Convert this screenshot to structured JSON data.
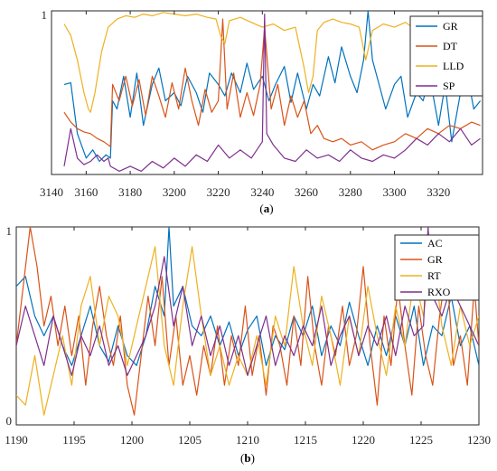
{
  "chart_data": [
    {
      "type": "line",
      "panel_label": "(a)",
      "xlim": [
        3150,
        3340
      ],
      "ylim": [
        0,
        1
      ],
      "xticks": [
        3140,
        3160,
        3180,
        3200,
        3220,
        3240,
        3260,
        3280,
        3300,
        3320
      ],
      "ytick_labels": [
        {
          "value": 1,
          "label": "1"
        }
      ],
      "grid": false,
      "legend_position": "top-right",
      "series": [
        {
          "name": "GR",
          "color": "#0072BD",
          "x": [
            3150,
            3153,
            3156,
            3160,
            3163,
            3166,
            3169,
            3171,
            3172,
            3174,
            3177,
            3180,
            3183,
            3186,
            3190,
            3193,
            3196,
            3200,
            3203,
            3206,
            3210,
            3213,
            3216,
            3220,
            3223,
            3226,
            3230,
            3233,
            3236,
            3240,
            3243,
            3246,
            3250,
            3253,
            3256,
            3260,
            3263,
            3266,
            3270,
            3273,
            3276,
            3280,
            3283,
            3286,
            3288,
            3290,
            3293,
            3296,
            3300,
            3303,
            3306,
            3310,
            3313,
            3316,
            3320,
            3323,
            3326,
            3330,
            3333,
            3336,
            3339
          ],
          "y": [
            0.55,
            0.56,
            0.25,
            0.1,
            0.15,
            0.08,
            0.12,
            0.1,
            0.45,
            0.4,
            0.6,
            0.35,
            0.62,
            0.3,
            0.55,
            0.65,
            0.45,
            0.5,
            0.42,
            0.6,
            0.5,
            0.38,
            0.62,
            0.55,
            0.48,
            0.62,
            0.5,
            0.68,
            0.52,
            0.6,
            0.45,
            0.55,
            0.66,
            0.44,
            0.62,
            0.4,
            0.55,
            0.48,
            0.72,
            0.56,
            0.78,
            0.6,
            0.5,
            0.7,
            1.0,
            0.7,
            0.55,
            0.4,
            0.55,
            0.6,
            0.35,
            0.5,
            0.45,
            0.6,
            0.3,
            0.55,
            0.2,
            0.5,
            0.62,
            0.4,
            0.45
          ]
        },
        {
          "name": "DT",
          "color": "#D95319",
          "x": [
            3150,
            3153,
            3156,
            3159,
            3162,
            3165,
            3168,
            3171,
            3172,
            3175,
            3178,
            3181,
            3184,
            3187,
            3190,
            3193,
            3196,
            3199,
            3202,
            3205,
            3208,
            3211,
            3214,
            3217,
            3220,
            3222,
            3224,
            3227,
            3230,
            3233,
            3236,
            3239,
            3241,
            3244,
            3247,
            3250,
            3253,
            3256,
            3259,
            3262,
            3265,
            3268,
            3272,
            3276,
            3280,
            3285,
            3290,
            3295,
            3300,
            3305,
            3310,
            3315,
            3320,
            3325,
            3330,
            3335,
            3339
          ],
          "y": [
            0.38,
            0.32,
            0.28,
            0.26,
            0.25,
            0.22,
            0.2,
            0.17,
            0.55,
            0.45,
            0.6,
            0.42,
            0.58,
            0.36,
            0.6,
            0.48,
            0.35,
            0.56,
            0.4,
            0.65,
            0.45,
            0.3,
            0.52,
            0.38,
            0.45,
            0.95,
            0.4,
            0.62,
            0.35,
            0.5,
            0.36,
            0.55,
            0.9,
            0.4,
            0.55,
            0.3,
            0.48,
            0.35,
            0.45,
            0.25,
            0.3,
            0.22,
            0.2,
            0.22,
            0.18,
            0.2,
            0.15,
            0.18,
            0.2,
            0.25,
            0.22,
            0.28,
            0.25,
            0.3,
            0.28,
            0.32,
            0.3
          ]
        },
        {
          "name": "LLD",
          "color": "#EDB120",
          "x": [
            3150,
            3153,
            3156,
            3159,
            3161,
            3162,
            3164,
            3167,
            3170,
            3174,
            3178,
            3182,
            3186,
            3190,
            3195,
            3200,
            3205,
            3210,
            3215,
            3219,
            3221,
            3223,
            3225,
            3230,
            3235,
            3240,
            3245,
            3250,
            3255,
            3259,
            3261,
            3263,
            3265,
            3268,
            3272,
            3276,
            3280,
            3284,
            3287,
            3290,
            3295,
            3300,
            3305,
            3310,
            3315,
            3320,
            3325,
            3330,
            3335,
            3339
          ],
          "y": [
            0.92,
            0.85,
            0.7,
            0.5,
            0.4,
            0.38,
            0.5,
            0.75,
            0.9,
            0.95,
            0.97,
            0.96,
            0.98,
            0.97,
            0.99,
            0.98,
            0.97,
            0.98,
            0.96,
            0.95,
            0.85,
            0.8,
            0.94,
            0.96,
            0.93,
            0.9,
            0.92,
            0.88,
            0.9,
            0.65,
            0.5,
            0.6,
            0.88,
            0.93,
            0.95,
            0.93,
            0.92,
            0.9,
            0.7,
            0.88,
            0.92,
            0.9,
            0.93,
            0.88,
            0.91,
            0.9,
            0.92,
            0.88,
            0.9,
            0.92
          ]
        },
        {
          "name": "SP",
          "color": "#7E2F8E",
          "x": [
            3150,
            3153,
            3156,
            3159,
            3162,
            3165,
            3168,
            3170,
            3171,
            3175,
            3180,
            3185,
            3190,
            3195,
            3200,
            3205,
            3210,
            3215,
            3220,
            3225,
            3230,
            3235,
            3240,
            3241,
            3242,
            3245,
            3250,
            3255,
            3260,
            3265,
            3270,
            3275,
            3280,
            3285,
            3290,
            3295,
            3300,
            3305,
            3310,
            3315,
            3320,
            3325,
            3330,
            3335,
            3339
          ],
          "y": [
            0.05,
            0.28,
            0.1,
            0.06,
            0.08,
            0.12,
            0.08,
            0.1,
            0.05,
            0.02,
            0.05,
            0.02,
            0.08,
            0.04,
            0.1,
            0.05,
            0.12,
            0.08,
            0.18,
            0.1,
            0.15,
            0.1,
            0.2,
            0.98,
            0.25,
            0.18,
            0.1,
            0.08,
            0.15,
            0.1,
            0.12,
            0.08,
            0.15,
            0.1,
            0.08,
            0.12,
            0.1,
            0.15,
            0.22,
            0.18,
            0.25,
            0.2,
            0.28,
            0.18,
            0.22
          ]
        }
      ]
    },
    {
      "type": "line",
      "panel_label": "(b)",
      "xlim": [
        1190,
        1230
      ],
      "ylim": [
        0,
        1
      ],
      "xticks": [
        1190,
        1195,
        1200,
        1205,
        1210,
        1215,
        1220,
        1225,
        1230
      ],
      "ytick_labels": [
        {
          "value": 0,
          "label": "0"
        },
        {
          "value": 1,
          "label": "1"
        }
      ],
      "grid": false,
      "legend_position": "top-right",
      "series": [
        {
          "name": "AC",
          "color": "#0072BD",
          "x": [
            1190,
            1190.8,
            1191.6,
            1192.4,
            1193.2,
            1194,
            1194.8,
            1195.6,
            1196.4,
            1197.2,
            1198,
            1198.8,
            1199.6,
            1200.4,
            1201.2,
            1202,
            1202.8,
            1203.2,
            1203.6,
            1204.4,
            1205.2,
            1206,
            1206.8,
            1207.6,
            1208.4,
            1209.2,
            1210,
            1210.8,
            1211.6,
            1212.4,
            1213.2,
            1214,
            1214.8,
            1215.6,
            1216.4,
            1217.2,
            1218,
            1218.8,
            1219.6,
            1220.4,
            1221.2,
            1222,
            1222.8,
            1223.6,
            1224.4,
            1225.2,
            1226,
            1226.8,
            1227.6,
            1228.4,
            1229.2,
            1230
          ],
          "y": [
            0.7,
            0.75,
            0.55,
            0.45,
            0.55,
            0.4,
            0.3,
            0.45,
            0.6,
            0.4,
            0.32,
            0.5,
            0.35,
            0.3,
            0.45,
            0.7,
            0.55,
            1.0,
            0.6,
            0.7,
            0.5,
            0.45,
            0.55,
            0.4,
            0.52,
            0.35,
            0.48,
            0.55,
            0.3,
            0.45,
            0.38,
            0.55,
            0.45,
            0.6,
            0.35,
            0.5,
            0.4,
            0.62,
            0.45,
            0.3,
            0.5,
            0.35,
            0.55,
            0.4,
            0.6,
            0.3,
            0.5,
            0.45,
            0.65,
            0.4,
            0.5,
            0.3
          ]
        },
        {
          "name": "GR",
          "color": "#D95319",
          "x": [
            1190,
            1190.6,
            1191.2,
            1191.8,
            1192.4,
            1193,
            1193.6,
            1194.2,
            1194.8,
            1195.4,
            1196,
            1196.6,
            1197.2,
            1197.8,
            1198.4,
            1199,
            1199.6,
            1200.2,
            1200.8,
            1201.4,
            1202,
            1202.6,
            1203.2,
            1203.8,
            1204.4,
            1205,
            1205.6,
            1206.2,
            1206.8,
            1207.4,
            1208,
            1208.6,
            1209.2,
            1209.8,
            1210.4,
            1211,
            1211.6,
            1212.2,
            1212.8,
            1213.4,
            1214,
            1214.6,
            1215.2,
            1215.8,
            1216.4,
            1217,
            1217.6,
            1218.2,
            1218.8,
            1219.4,
            1220,
            1220.6,
            1221.2,
            1221.8,
            1222.4,
            1223,
            1223.6,
            1224.2,
            1224.8,
            1225.4,
            1226,
            1226.6,
            1227.2,
            1227.8,
            1228.4,
            1229,
            1229.6,
            1230
          ],
          "y": [
            0.4,
            0.7,
            1.0,
            0.8,
            0.5,
            0.65,
            0.4,
            0.6,
            0.35,
            0.55,
            0.2,
            0.5,
            0.7,
            0.45,
            0.3,
            0.55,
            0.2,
            0.05,
            0.35,
            0.65,
            0.4,
            0.75,
            0.3,
            0.55,
            0.2,
            0.35,
            0.15,
            0.4,
            0.25,
            0.5,
            0.2,
            0.45,
            0.3,
            0.6,
            0.25,
            0.45,
            0.15,
            0.5,
            0.4,
            0.2,
            0.55,
            0.3,
            0.75,
            0.4,
            0.2,
            0.5,
            0.35,
            0.6,
            0.3,
            0.45,
            0.8,
            0.4,
            0.1,
            0.55,
            0.3,
            0.7,
            0.4,
            0.15,
            0.6,
            0.35,
            0.2,
            0.55,
            0.8,
            0.3,
            0.45,
            0.2,
            0.7,
            0.4
          ]
        },
        {
          "name": "RT",
          "color": "#EDB120",
          "x": [
            1190,
            1190.8,
            1191.6,
            1192.4,
            1193.2,
            1194,
            1194.8,
            1195.6,
            1196.4,
            1197.2,
            1198,
            1198.8,
            1199.6,
            1200.4,
            1201.2,
            1202,
            1202.8,
            1203.6,
            1204.4,
            1205.2,
            1206,
            1206.8,
            1207.6,
            1208.4,
            1209.2,
            1210,
            1210.8,
            1211.6,
            1212.4,
            1213.2,
            1214,
            1214.8,
            1215.6,
            1216.4,
            1217.2,
            1218,
            1218.8,
            1219.6,
            1220.4,
            1221.2,
            1222,
            1222.8,
            1223.6,
            1224.4,
            1225.2,
            1226,
            1226.8,
            1227.6,
            1228.4,
            1229.2,
            1230
          ],
          "y": [
            0.15,
            0.1,
            0.35,
            0.05,
            0.25,
            0.45,
            0.2,
            0.6,
            0.75,
            0.4,
            0.65,
            0.55,
            0.3,
            0.5,
            0.7,
            0.9,
            0.4,
            0.2,
            0.6,
            0.9,
            0.55,
            0.25,
            0.4,
            0.2,
            0.35,
            0.25,
            0.45,
            0.2,
            0.55,
            0.4,
            0.8,
            0.5,
            0.3,
            0.65,
            0.45,
            0.2,
            0.55,
            0.35,
            0.7,
            0.45,
            0.25,
            0.6,
            0.4,
            0.75,
            0.55,
            0.9,
            0.5,
            0.3,
            0.6,
            0.4,
            0.55
          ]
        },
        {
          "name": "RXO",
          "color": "#7E2F8E",
          "x": [
            1190,
            1190.8,
            1191.6,
            1192.4,
            1193.2,
            1194,
            1194.8,
            1195.6,
            1196.4,
            1197.2,
            1198,
            1198.8,
            1199.6,
            1200.4,
            1201.2,
            1202,
            1202.8,
            1203.6,
            1204.4,
            1205.2,
            1206,
            1206.8,
            1207.6,
            1208.4,
            1209.2,
            1210,
            1210.8,
            1211.6,
            1212.4,
            1213.2,
            1214,
            1214.8,
            1215.6,
            1216.4,
            1217.2,
            1218,
            1218.8,
            1219.6,
            1220.4,
            1221.2,
            1222,
            1222.8,
            1223.6,
            1224.4,
            1225.2,
            1225.6,
            1226,
            1226.8,
            1227.6,
            1228.4,
            1229.2,
            1230
          ],
          "y": [
            0.4,
            0.6,
            0.45,
            0.3,
            0.55,
            0.4,
            0.25,
            0.45,
            0.35,
            0.5,
            0.3,
            0.4,
            0.25,
            0.35,
            0.45,
            0.6,
            0.85,
            0.5,
            0.7,
            0.4,
            0.55,
            0.35,
            0.5,
            0.3,
            0.45,
            0.25,
            0.4,
            0.55,
            0.3,
            0.45,
            0.35,
            0.5,
            0.4,
            0.6,
            0.3,
            0.45,
            0.55,
            0.35,
            0.5,
            0.4,
            0.55,
            0.35,
            0.6,
            0.45,
            0.5,
            1.0,
            0.65,
            0.55,
            0.7,
            0.6,
            0.5,
            0.4
          ]
        }
      ]
    }
  ]
}
